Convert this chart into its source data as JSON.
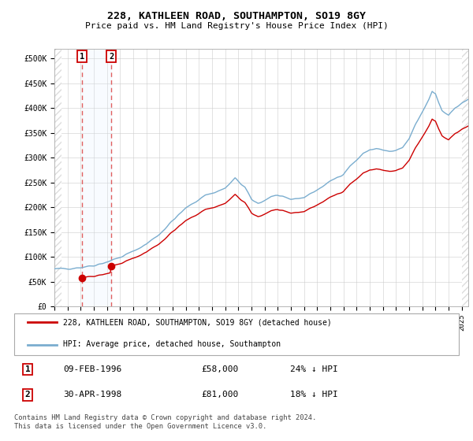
{
  "title": "228, KATHLEEN ROAD, SOUTHAMPTON, SO19 8GY",
  "subtitle": "Price paid vs. HM Land Registry's House Price Index (HPI)",
  "xlim_min": 1994.0,
  "xlim_max": 2025.5,
  "ylim_min": 0,
  "ylim_max": 520000,
  "yticks": [
    0,
    50000,
    100000,
    150000,
    200000,
    250000,
    300000,
    350000,
    400000,
    450000,
    500000
  ],
  "ytick_labels": [
    "£0",
    "£50K",
    "£100K",
    "£150K",
    "£200K",
    "£250K",
    "£300K",
    "£350K",
    "£400K",
    "£450K",
    "£500K"
  ],
  "xtick_years": [
    1994,
    1995,
    1996,
    1997,
    1998,
    1999,
    2000,
    2001,
    2002,
    2003,
    2004,
    2005,
    2006,
    2007,
    2008,
    2009,
    2010,
    2011,
    2012,
    2013,
    2014,
    2015,
    2016,
    2017,
    2018,
    2019,
    2020,
    2021,
    2022,
    2023,
    2024,
    2025
  ],
  "sale1_x": 1996.1,
  "sale1_y": 58000,
  "sale2_x": 1998.33,
  "sale2_y": 81000,
  "vline1_x": 1996.1,
  "vline2_x": 1998.33,
  "legend_entries": [
    "228, KATHLEEN ROAD, SOUTHAMPTON, SO19 8GY (detached house)",
    "HPI: Average price, detached house, Southampton"
  ],
  "table_rows": [
    {
      "num": "1",
      "date": "09-FEB-1996",
      "price": "£58,000",
      "hpi": "24% ↓ HPI"
    },
    {
      "num": "2",
      "date": "30-APR-1998",
      "price": "£81,000",
      "hpi": "18% ↓ HPI"
    }
  ],
  "footnote": "Contains HM Land Registry data © Crown copyright and database right 2024.\nThis data is licensed under the Open Government Licence v3.0.",
  "hpi_color": "#7aadcf",
  "price_color": "#cc0000",
  "vline_color": "#e06060",
  "shade_color": "#ddeeff",
  "grid_color": "#cccccc",
  "hatch_color": "#dddddd"
}
